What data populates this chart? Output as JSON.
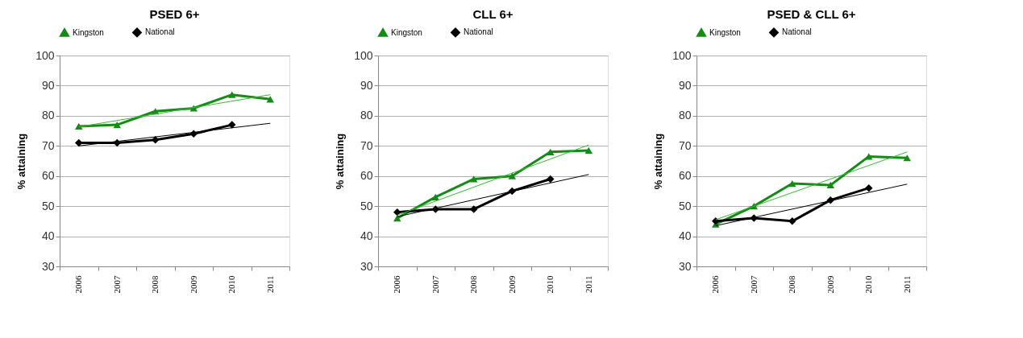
{
  "chart_data": [
    {
      "type": "line",
      "title": "PSED 6+",
      "ylabel": "% attaining",
      "categories": [
        "2006",
        "2007",
        "2008",
        "2009",
        "2010",
        "2011"
      ],
      "ylim": [
        30,
        100
      ],
      "yticks": [
        30,
        40,
        50,
        60,
        70,
        80,
        90,
        100
      ],
      "grid": "y",
      "legend": "top",
      "series": [
        {
          "name": "Kingston",
          "color": "#168a16",
          "marker": "triangle",
          "values": [
            76.5,
            77,
            81.5,
            82.5,
            87,
            85.5
          ]
        },
        {
          "name": "National",
          "color": "#000000",
          "marker": "diamond",
          "values": [
            71,
            71,
            72,
            74,
            77,
            null
          ]
        },
        {
          "type": "line",
          "color": "#33bb33",
          "marker": "none",
          "values": [
            76.3,
            null,
            null,
            null,
            null,
            87
          ]
        },
        {
          "type": "line",
          "color": "#000000",
          "marker": "none",
          "values": [
            70,
            null,
            null,
            null,
            null,
            77.5
          ]
        }
      ]
    },
    {
      "type": "line",
      "title": "CLL 6+",
      "ylabel": "% attaining",
      "categories": [
        "2006",
        "2007",
        "2008",
        "2009",
        "2010",
        "2011"
      ],
      "ylim": [
        30,
        100
      ],
      "yticks": [
        30,
        40,
        50,
        60,
        70,
        80,
        90,
        100
      ],
      "grid": "y",
      "legend": "top",
      "series": [
        {
          "name": "Kingston",
          "color": "#168a16",
          "marker": "triangle",
          "values": [
            46,
            53,
            59,
            60,
            68,
            68.5
          ]
        },
        {
          "name": "National",
          "color": "#000000",
          "marker": "diamond",
          "values": [
            48,
            49,
            49,
            55,
            59,
            null
          ]
        },
        {
          "type": "line",
          "color": "#33bb33",
          "marker": "none",
          "values": [
            47,
            null,
            null,
            null,
            null,
            70.3
          ]
        },
        {
          "type": "line",
          "color": "#000000",
          "marker": "none",
          "values": [
            46.5,
            null,
            null,
            null,
            null,
            60.5
          ]
        }
      ]
    },
    {
      "type": "line",
      "title": "PSED & CLL 6+",
      "ylabel": "% attaining",
      "categories": [
        "2006",
        "2007",
        "2008",
        "2009",
        "2010",
        "2011"
      ],
      "ylim": [
        30,
        100
      ],
      "yticks": [
        30,
        40,
        50,
        60,
        70,
        80,
        90,
        100
      ],
      "grid": "y",
      "legend": "top",
      "series": [
        {
          "name": "Kingston",
          "color": "#168a16",
          "marker": "triangle",
          "values": [
            44,
            50,
            57.5,
            57,
            66.5,
            66
          ]
        },
        {
          "name": "National",
          "color": "#000000",
          "marker": "diamond",
          "values": [
            45,
            46,
            45,
            52,
            56,
            null
          ]
        },
        {
          "type": "line",
          "color": "#33bb33",
          "marker": "none",
          "values": [
            45.5,
            null,
            null,
            null,
            null,
            68
          ]
        },
        {
          "type": "line",
          "color": "#000000",
          "marker": "none",
          "values": [
            43.5,
            null,
            null,
            null,
            null,
            57.3
          ]
        }
      ]
    }
  ]
}
